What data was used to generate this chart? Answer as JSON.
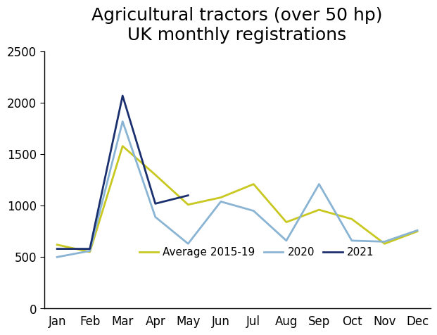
{
  "title": "Agricultural tractors (over 50 hp)\nUK monthly registrations",
  "months": [
    "Jan",
    "Feb",
    "Mar",
    "Apr",
    "May",
    "Jun",
    "Jul",
    "Aug",
    "Sep",
    "Oct",
    "Nov",
    "Dec"
  ],
  "avg_2015_19": [
    620,
    550,
    1580,
    1300,
    1010,
    1080,
    1210,
    840,
    960,
    870,
    630,
    750
  ],
  "year_2020": [
    500,
    560,
    1820,
    890,
    630,
    1040,
    950,
    660,
    1210,
    660,
    650,
    760
  ],
  "year_2021": [
    580,
    580,
    2070,
    1020,
    1100,
    null,
    null,
    null,
    null,
    null,
    null,
    null
  ],
  "color_avg": "#c8c820",
  "color_2020": "#8ab4d4",
  "color_2021": "#1a2f6e",
  "ylim": [
    0,
    2500
  ],
  "yticks": [
    0,
    500,
    1000,
    1500,
    2000,
    2500
  ],
  "legend_labels": [
    "Average 2015-19",
    "2020",
    "2021"
  ],
  "linewidth": 2.0,
  "title_fontsize": 18,
  "tick_fontsize": 12
}
